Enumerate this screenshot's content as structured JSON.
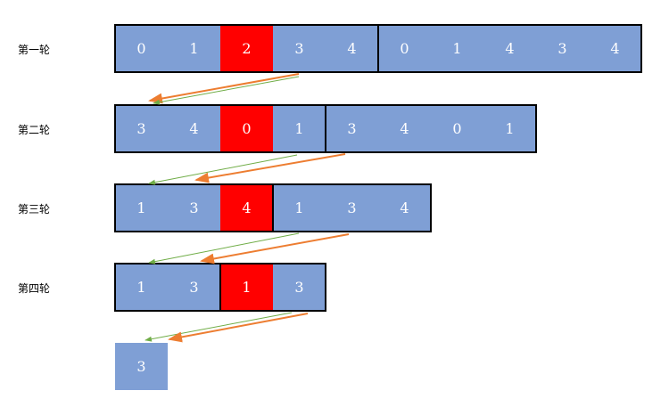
{
  "rounds": [
    {
      "label": "第一轮",
      "values": [
        "0",
        "1",
        "2",
        "3",
        "4",
        "0",
        "1",
        "4",
        "3",
        "4"
      ],
      "highlight_index": 2,
      "groups": [
        5,
        5
      ]
    },
    {
      "label": "第二轮",
      "values": [
        "3",
        "4",
        "0",
        "1",
        "3",
        "4",
        "0",
        "1"
      ],
      "highlight_index": 2,
      "groups": [
        4,
        4
      ]
    },
    {
      "label": "第三轮",
      "values": [
        "1",
        "3",
        "4",
        "1",
        "3",
        "4"
      ],
      "highlight_index": 2,
      "groups": [
        3,
        3
      ]
    },
    {
      "label": "第四轮",
      "values": [
        "1",
        "3",
        "1",
        "3"
      ],
      "highlight_index": 2,
      "groups": [
        2,
        2
      ]
    }
  ],
  "result": {
    "value": "3"
  },
  "colors": {
    "cell": "#7f9fd5",
    "highlight": "#ff0000",
    "arrow_orange": "#ed7d31",
    "arrow_green": "#70ad47"
  }
}
